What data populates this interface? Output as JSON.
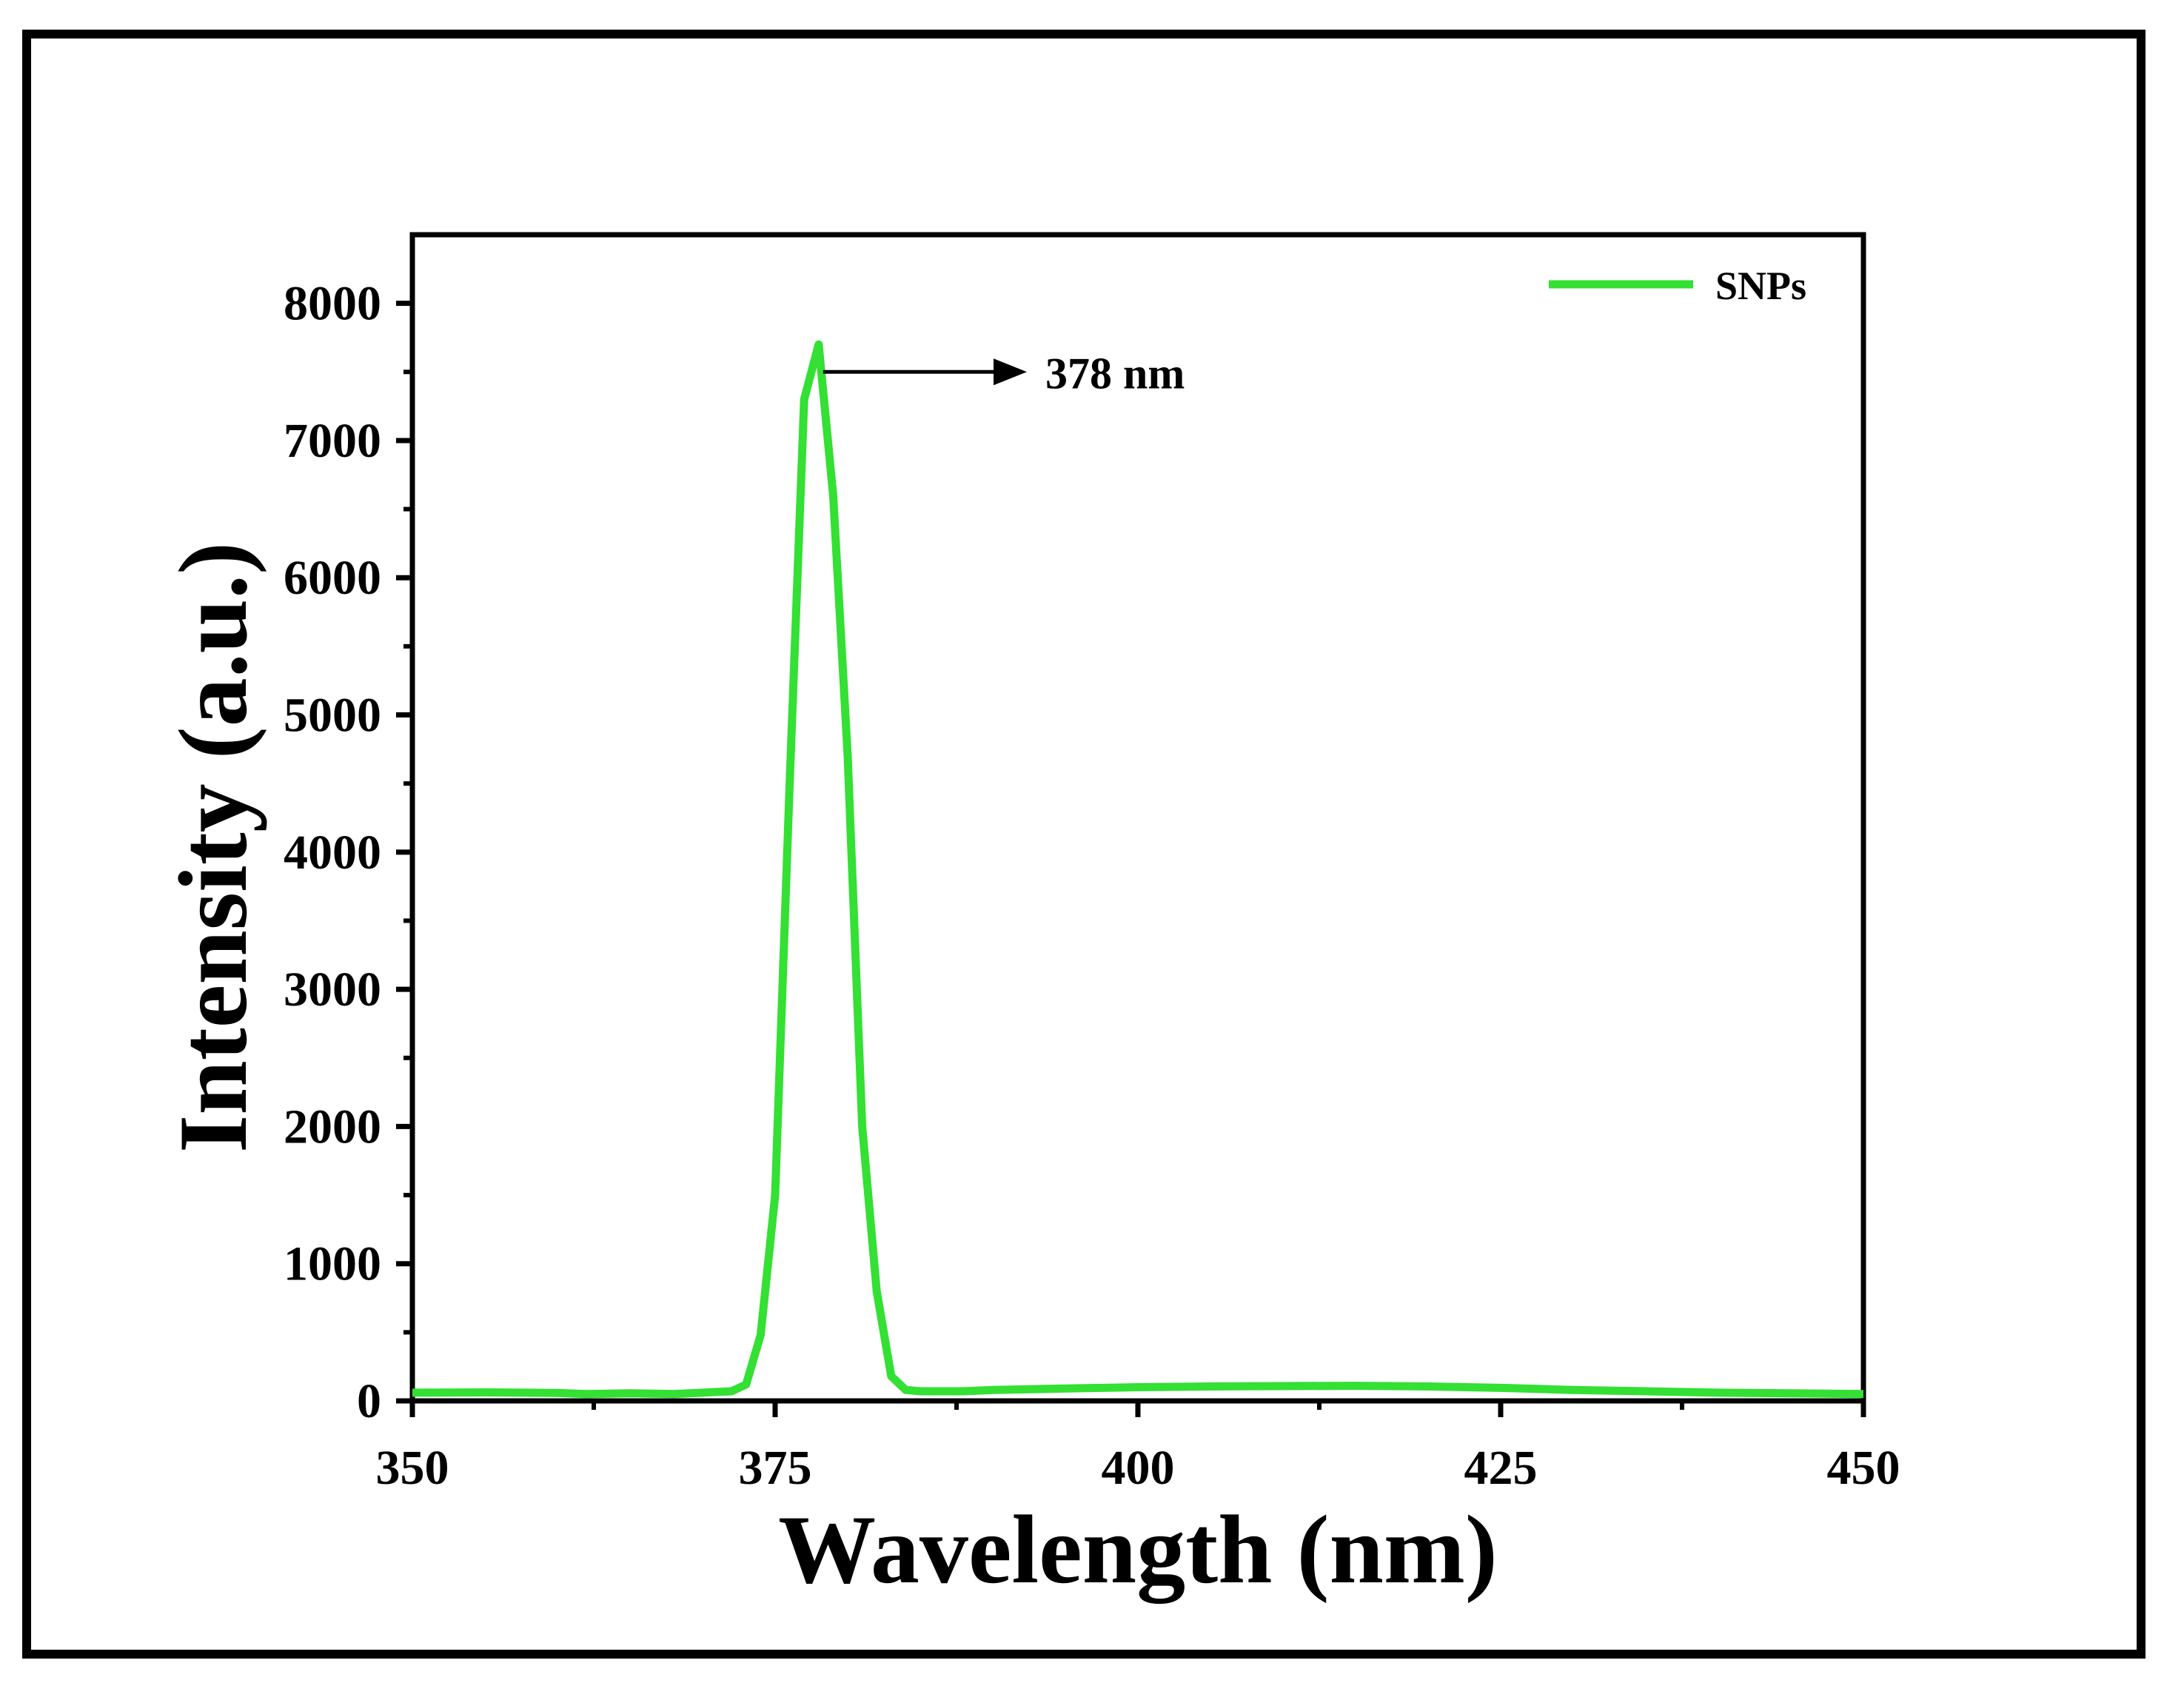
{
  "chart_data": {
    "type": "line",
    "title": "",
    "xlabel": "Wavelength (nm)",
    "ylabel": "Intensity (a.u.)",
    "xlim": [
      350,
      450
    ],
    "ylim": [
      0,
      8500
    ],
    "x_ticks": [
      350,
      375,
      400,
      425,
      450
    ],
    "y_ticks": [
      0,
      1000,
      2000,
      3000,
      4000,
      5000,
      6000,
      7000,
      8000
    ],
    "grid": false,
    "legend_position": "top-right",
    "series": [
      {
        "name": "SNPs",
        "color": "#33e033",
        "x": [
          350,
          355,
          360,
          362,
          365,
          368,
          370,
          372,
          373,
          374,
          375,
          376,
          377,
          378,
          379,
          380,
          381,
          382,
          383,
          384,
          385,
          388,
          390,
          395,
          400,
          405,
          410,
          415,
          420,
          425,
          430,
          435,
          440,
          445,
          450
        ],
        "y": [
          60,
          62,
          58,
          50,
          55,
          50,
          60,
          70,
          120,
          480,
          1500,
          4500,
          7300,
          7700,
          6600,
          4700,
          2000,
          800,
          180,
          80,
          70,
          70,
          80,
          90,
          100,
          105,
          108,
          110,
          105,
          95,
          80,
          70,
          60,
          55,
          50
        ]
      }
    ],
    "annotations": [
      {
        "text": "378 nm",
        "x": 378,
        "y": 7500,
        "arrow": true
      }
    ]
  }
}
